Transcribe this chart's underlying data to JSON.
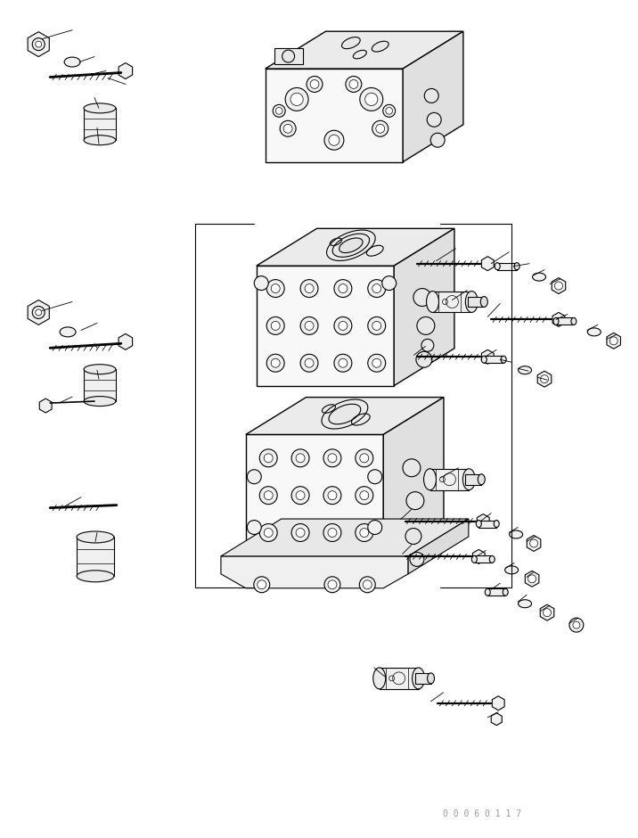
{
  "background_color": "#ffffff",
  "figure_width": 7.16,
  "figure_height": 9.4,
  "dpi": 100,
  "watermark_text": "0 0 0 6 0 1 1 7",
  "watermark_color": "#999999",
  "watermark_fontsize": 7,
  "line_color": "#000000",
  "line_width": 0.8
}
